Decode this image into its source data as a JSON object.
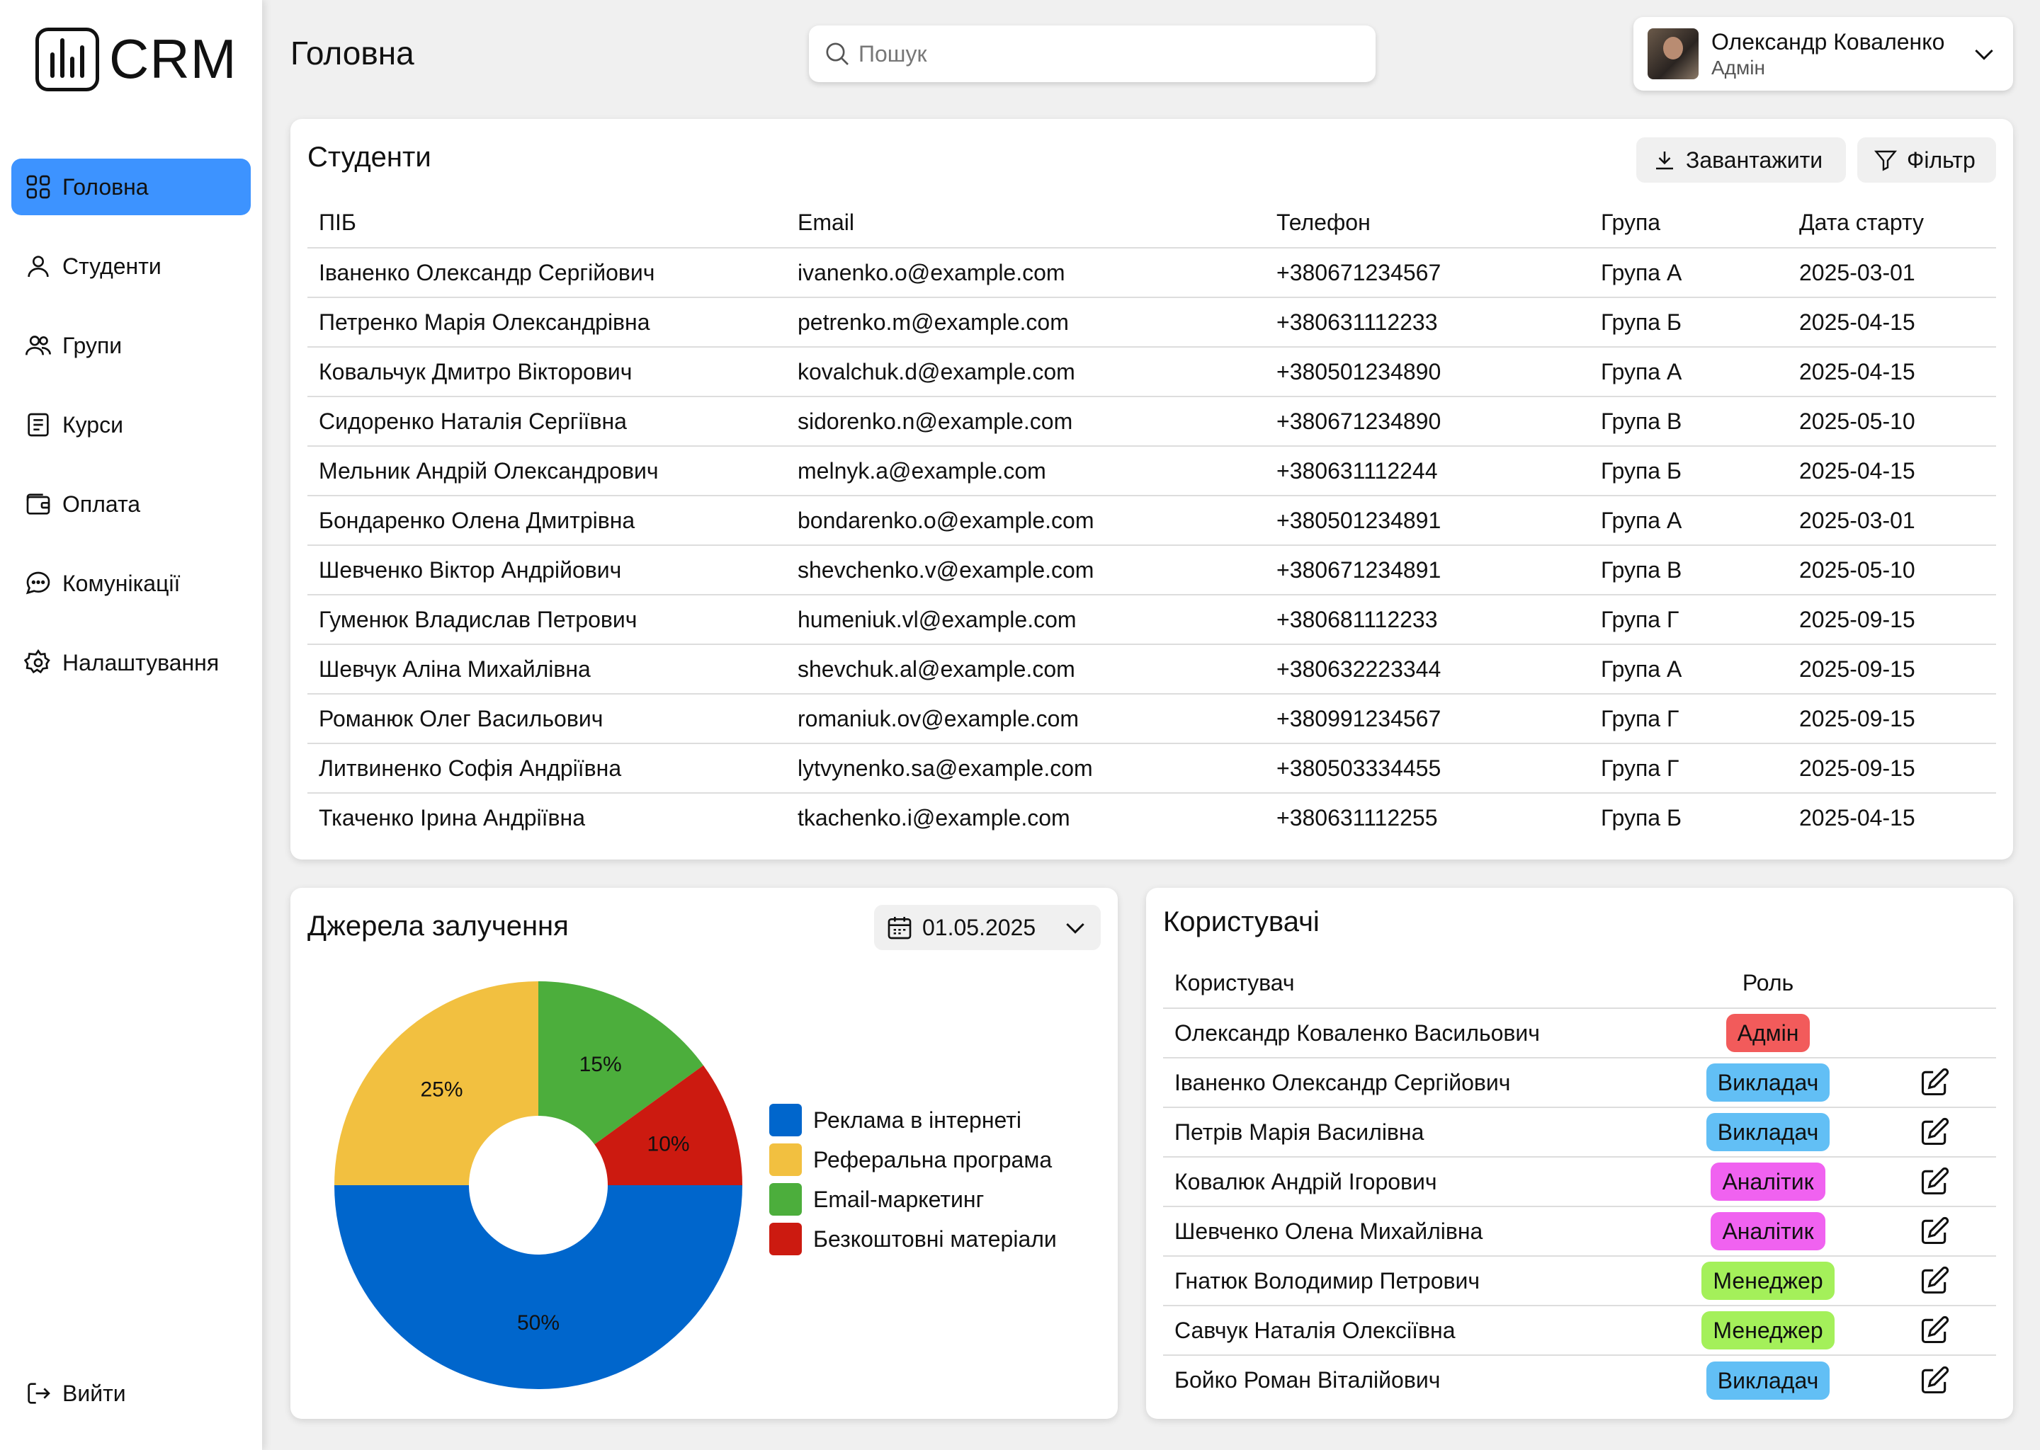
{
  "app": {
    "logo_text": "CRM"
  },
  "sidebar": {
    "items": [
      {
        "label": "Головна",
        "icon": "grid-icon",
        "active": true
      },
      {
        "label": "Студенти",
        "icon": "user-icon"
      },
      {
        "label": "Групи",
        "icon": "users-icon"
      },
      {
        "label": "Курси",
        "icon": "book-icon"
      },
      {
        "label": "Оплата",
        "icon": "wallet-icon"
      },
      {
        "label": "Комунікації",
        "icon": "chat-icon"
      },
      {
        "label": "Налаштування",
        "icon": "gear-icon"
      }
    ],
    "logout_label": "Вийти"
  },
  "header": {
    "title": "Головна",
    "search_placeholder": "Пошук",
    "user_name": "Олександр Коваленко",
    "user_role": "Адмін"
  },
  "students": {
    "title": "Студенти",
    "download_label": "Завантажити",
    "filter_label": "Фільтр",
    "columns": [
      "ПІБ",
      "Email",
      "Телефон",
      "Група",
      "Дата старту"
    ],
    "rows": [
      [
        "Іваненко Олександр Сергійович",
        "ivanenko.o@example.com",
        "+380671234567",
        "Група А",
        "2025-03-01"
      ],
      [
        "Петренко Марія Олександрівна",
        "petrenko.m@example.com",
        "+380631112233",
        "Група Б",
        "2025-04-15"
      ],
      [
        "Ковальчук Дмитро Вікторович",
        "kovalchuk.d@example.com",
        "+380501234890",
        "Група А",
        "2025-04-15"
      ],
      [
        "Сидоренко Наталія Сергіївна",
        "sidorenko.n@example.com",
        "+380671234890",
        "Група В",
        "2025-05-10"
      ],
      [
        "Мельник Андрій Олександрович",
        "melnyk.a@example.com",
        "+380631112244",
        "Група Б",
        "2025-04-15"
      ],
      [
        "Бондаренко Олена Дмитрівна",
        "bondarenko.o@example.com",
        "+380501234891",
        "Група А",
        "2025-03-01"
      ],
      [
        "Шевченко Віктор Андрійович",
        "shevchenko.v@example.com",
        "+380671234891",
        "Група В",
        "2025-05-10"
      ],
      [
        "Гуменюк Владислав Петрович",
        "humeniuk.vl@example.com",
        "+380681112233",
        "Група Г",
        "2025-09-15"
      ],
      [
        "Шевчук Аліна Михайлівна",
        "shevchuk.al@example.com",
        "+380632223344",
        "Група А",
        "2025-09-15"
      ],
      [
        "Романюк Олег Васильович",
        "romaniuk.ov@example.com",
        "+380991234567",
        "Група Г",
        "2025-09-15"
      ],
      [
        "Литвиненко Софія Андріївна",
        "lytvynenko.sa@example.com",
        "+380503334455",
        "Група Г",
        "2025-09-15"
      ],
      [
        "Ткаченко Ірина Андріївна",
        "tkachenko.i@example.com",
        "+380631112255",
        "Група Б",
        "2025-04-15"
      ]
    ]
  },
  "sources": {
    "title": "Джерела залучення",
    "date_value": "01.05.2025"
  },
  "chart_data": {
    "type": "pie",
    "donut": true,
    "categories": [
      "Реклама в інтернеті",
      "Реферальна програма",
      "Email-маркетинг",
      "Безкоштовні матеріали"
    ],
    "values": [
      50,
      25,
      15,
      10
    ],
    "value_labels": [
      "50%",
      "25%",
      "15%",
      "10%"
    ],
    "colors": [
      "#0066cc",
      "#f2c040",
      "#4cae3c",
      "#cc1a10"
    ],
    "legend": "right"
  },
  "users": {
    "title": "Користувачі",
    "columns": [
      "Користувач",
      "Роль"
    ],
    "rows": [
      {
        "name": "Олександр Коваленко Васильович",
        "role": "Адмін",
        "color": "#f25b5b",
        "editable": false
      },
      {
        "name": "Іваненко Олександр Сергійович",
        "role": "Викладач",
        "color": "#62bff5",
        "editable": true
      },
      {
        "name": "Петрів Марія Василівна",
        "role": "Викладач",
        "color": "#62bff5",
        "editable": true
      },
      {
        "name": "Ковалюк Андрій Ігорович",
        "role": "Аналітик",
        "color": "#f062f0",
        "editable": true
      },
      {
        "name": "Шевченко Олена Михайлівна",
        "role": "Аналітик",
        "color": "#f062f0",
        "editable": true
      },
      {
        "name": "Гнатюк Володимир Петрович",
        "role": "Менеджер",
        "color": "#a4f05a",
        "editable": true
      },
      {
        "name": "Савчук Наталія Олексіївна",
        "role": "Менеджер",
        "color": "#a4f05a",
        "editable": true
      },
      {
        "name": "Бойко Роман Віталійович",
        "role": "Викладач",
        "color": "#62bff5",
        "editable": true
      }
    ]
  }
}
